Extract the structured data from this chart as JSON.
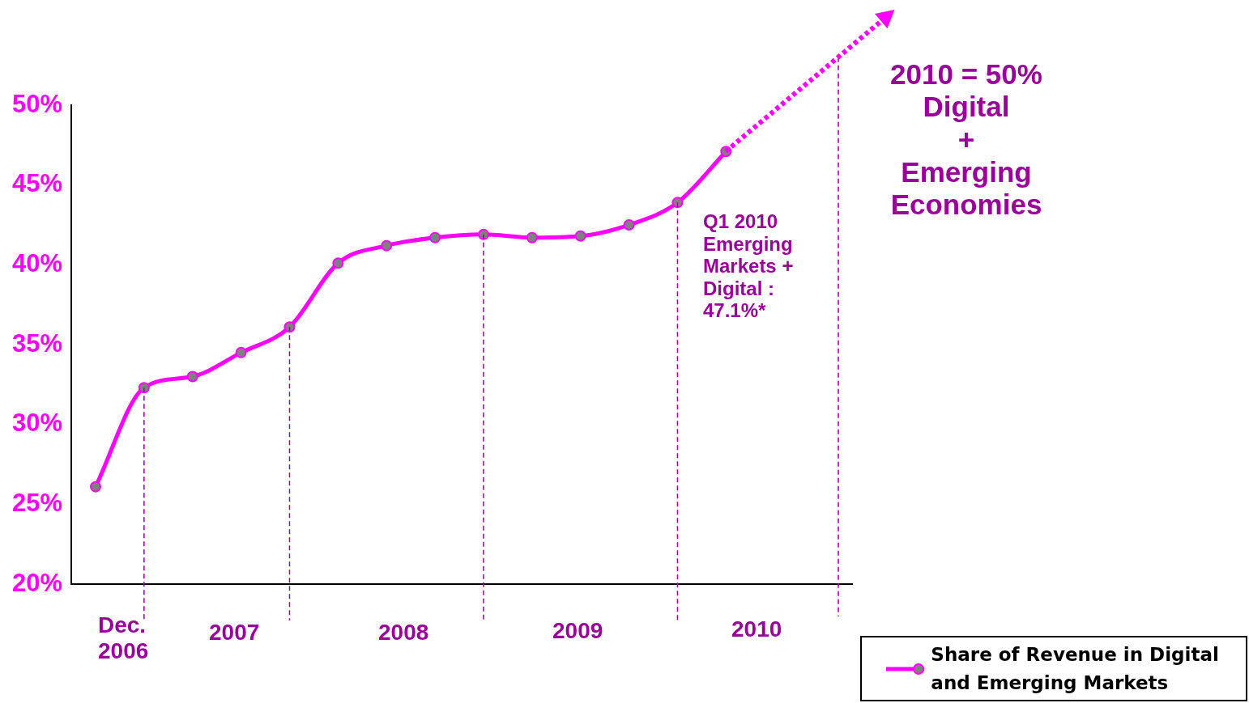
{
  "chart_data": {
    "type": "line",
    "categories": [
      null,
      null,
      null,
      null,
      null,
      null,
      null,
      null,
      null,
      null,
      null,
      null,
      null,
      null
    ],
    "series": [
      {
        "name": "Share of Revenue in Digital and Emerging Markets",
        "color": "#ff00ff",
        "values": [
          26.1,
          32.3,
          33.0,
          34.5,
          36.1,
          40.1,
          41.2,
          41.7,
          41.9,
          41.7,
          41.8,
          42.5,
          43.9,
          47.1
        ]
      }
    ],
    "ylim": [
      20,
      50
    ],
    "yticks": [
      {
        "value": 20,
        "label": "20%"
      },
      {
        "value": 25,
        "label": "25%"
      },
      {
        "value": 30,
        "label": "30%"
      },
      {
        "value": 35,
        "label": "35%"
      },
      {
        "value": 40,
        "label": "40%"
      },
      {
        "value": 45,
        "label": "45%"
      },
      {
        "value": 50,
        "label": "50%"
      }
    ],
    "tick_labels": "y",
    "grid": false,
    "legend": "bottom right",
    "marker": "circle",
    "line_style": "solid",
    "annotations": [
      "Dec.\n2006",
      "2007",
      "2008",
      "2009",
      "2010",
      "Q1 2010\nEmerging\nMarkets +\n Digital :\n47.1%*",
      "2010 = 50%\nDigital\n+\nEmerging\nEconomies"
    ]
  }
}
